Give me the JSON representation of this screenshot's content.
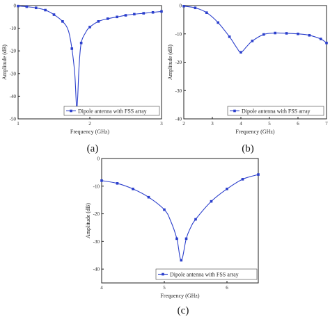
{
  "chart_data": [
    {
      "id": "a",
      "type": "line",
      "label": "(a)",
      "xlabel": "Frequency (GHz)",
      "ylabel": "Amplitude (dB)",
      "xlim": [
        1,
        3
      ],
      "ylim": [
        -50,
        0
      ],
      "xticks": [
        1,
        2,
        3
      ],
      "yticks": [
        0,
        -10,
        -20,
        -30,
        -40,
        -50
      ],
      "legend_position": "bottom-right",
      "series": [
        {
          "name": "Dipole antenna with FSS array",
          "color": "#2b3fcc",
          "markers": [
            [
              1.0,
              -0.2
            ],
            [
              1.12,
              -0.5
            ],
            [
              1.25,
              -1.0
            ],
            [
              1.38,
              -2.0
            ],
            [
              1.5,
              -4.0
            ],
            [
              1.62,
              -7.0
            ],
            [
              1.75,
              -19.0
            ],
            [
              1.82,
              -45.0
            ],
            [
              1.88,
              -16.5
            ],
            [
              2.0,
              -9.5
            ],
            [
              2.12,
              -7.0
            ],
            [
              2.25,
              -5.8
            ],
            [
              2.38,
              -5.0
            ],
            [
              2.5,
              -4.3
            ],
            [
              2.62,
              -3.8
            ],
            [
              2.75,
              -3.4
            ],
            [
              2.88,
              -3.0
            ],
            [
              3.0,
              -2.6
            ]
          ],
          "curve": [
            [
              1.0,
              -0.2
            ],
            [
              1.12,
              -0.5
            ],
            [
              1.25,
              -1.0
            ],
            [
              1.38,
              -2.0
            ],
            [
              1.5,
              -4.0
            ],
            [
              1.62,
              -7.0
            ],
            [
              1.7,
              -11.0
            ],
            [
              1.75,
              -19.0
            ],
            [
              1.79,
              -30.0
            ],
            [
              1.82,
              -45.0
            ],
            [
              1.85,
              -27.0
            ],
            [
              1.88,
              -16.5
            ],
            [
              1.94,
              -12.0
            ],
            [
              2.0,
              -9.5
            ],
            [
              2.12,
              -7.0
            ],
            [
              2.25,
              -5.8
            ],
            [
              2.38,
              -5.0
            ],
            [
              2.5,
              -4.3
            ],
            [
              2.62,
              -3.8
            ],
            [
              2.75,
              -3.4
            ],
            [
              2.88,
              -3.0
            ],
            [
              3.0,
              -2.6
            ]
          ]
        }
      ]
    },
    {
      "id": "b",
      "type": "line",
      "label": "(b)",
      "xlabel": "Frequency (GHz)",
      "ylabel": "Amplitude (dB)",
      "xlim": [
        2,
        7
      ],
      "ylim": [
        -40,
        0
      ],
      "xticks": [
        2,
        3,
        4,
        5,
        6,
        7
      ],
      "yticks": [
        0,
        -10,
        -20,
        -30,
        -40
      ],
      "legend_position": "bottom-right",
      "series": [
        {
          "name": "Dipole antenna with FSS array",
          "color": "#2b3fcc",
          "markers": [
            [
              2.0,
              -0.2
            ],
            [
              2.4,
              -0.8
            ],
            [
              2.8,
              -2.5
            ],
            [
              3.2,
              -6.0
            ],
            [
              3.6,
              -11.0
            ],
            [
              4.0,
              -16.5
            ],
            [
              4.4,
              -12.5
            ],
            [
              4.8,
              -10.2
            ],
            [
              5.2,
              -9.7
            ],
            [
              5.6,
              -9.8
            ],
            [
              6.0,
              -10.0
            ],
            [
              6.4,
              -10.5
            ],
            [
              6.8,
              -11.8
            ],
            [
              7.0,
              -13.2
            ]
          ],
          "curve": [
            [
              2.0,
              -0.2
            ],
            [
              2.4,
              -0.8
            ],
            [
              2.8,
              -2.5
            ],
            [
              3.2,
              -6.0
            ],
            [
              3.6,
              -11.0
            ],
            [
              3.85,
              -14.8
            ],
            [
              4.0,
              -16.5
            ],
            [
              4.2,
              -14.5
            ],
            [
              4.4,
              -12.5
            ],
            [
              4.8,
              -10.2
            ],
            [
              5.2,
              -9.7
            ],
            [
              5.6,
              -9.8
            ],
            [
              6.0,
              -10.0
            ],
            [
              6.4,
              -10.5
            ],
            [
              6.8,
              -11.8
            ],
            [
              7.0,
              -13.2
            ]
          ]
        }
      ]
    },
    {
      "id": "c",
      "type": "line",
      "label": "(c)",
      "xlabel": "Frequency (GHz)",
      "ylabel": "Amplitude (dB)",
      "xlim": [
        4,
        6.5
      ],
      "ylim": [
        -45,
        0
      ],
      "xticks": [
        4,
        5,
        6
      ],
      "yticks": [
        0,
        -10,
        -20,
        -30,
        -40
      ],
      "legend_position": "bottom-right",
      "series": [
        {
          "name": "Dipole antenna with FSS array",
          "color": "#2b3fcc",
          "markers": [
            [
              4.0,
              -8.0
            ],
            [
              4.25,
              -9.0
            ],
            [
              4.5,
              -11.0
            ],
            [
              4.75,
              -14.0
            ],
            [
              5.0,
              -18.5
            ],
            [
              5.2,
              -29.0
            ],
            [
              5.27,
              -36.8
            ],
            [
              5.35,
              -29.0
            ],
            [
              5.5,
              -22.0
            ],
            [
              5.75,
              -15.5
            ],
            [
              6.0,
              -11.0
            ],
            [
              6.25,
              -7.5
            ],
            [
              6.5,
              -5.8
            ]
          ],
          "curve": [
            [
              4.0,
              -8.0
            ],
            [
              4.25,
              -9.0
            ],
            [
              4.5,
              -11.0
            ],
            [
              4.75,
              -14.0
            ],
            [
              5.0,
              -18.5
            ],
            [
              5.1,
              -22.5
            ],
            [
              5.2,
              -29.0
            ],
            [
              5.27,
              -36.8
            ],
            [
              5.35,
              -29.0
            ],
            [
              5.42,
              -25.0
            ],
            [
              5.5,
              -22.0
            ],
            [
              5.75,
              -15.5
            ],
            [
              6.0,
              -11.0
            ],
            [
              6.25,
              -7.5
            ],
            [
              6.5,
              -5.8
            ]
          ]
        }
      ]
    }
  ]
}
